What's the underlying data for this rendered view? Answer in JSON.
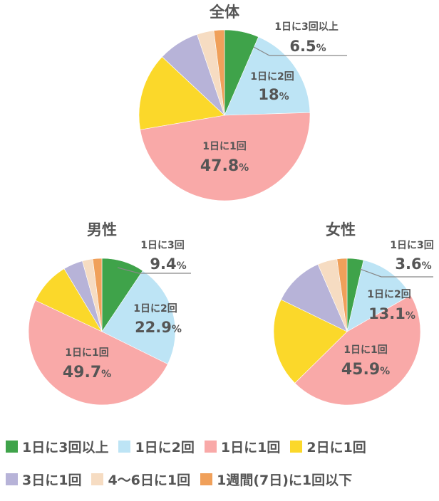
{
  "colors": {
    "g3": "#3fa34a",
    "g2": "#bde4f5",
    "g1": "#f9a9a8",
    "g4": "#fbd82a",
    "g5": "#b7b3d8",
    "g6": "#f6dcc2",
    "g7": "#f0a05a"
  },
  "legend": [
    {
      "key": "g3",
      "label": "1日に3回以上"
    },
    {
      "key": "g2",
      "label": "1日に2回"
    },
    {
      "key": "g1",
      "label": "1日に1回"
    },
    {
      "key": "g4",
      "label": "2日に1回"
    },
    {
      "key": "g5",
      "label": "3日に1回"
    },
    {
      "key": "g6",
      "label": "4〜6日に1回"
    },
    {
      "key": "g7",
      "label": "1週間(7日)に1回以下"
    }
  ],
  "chart_data": [
    {
      "type": "pie",
      "title": "全体",
      "series": [
        {
          "name": "1日に3回以上",
          "value": 6.5
        },
        {
          "name": "1日に2回",
          "value": 18.0
        },
        {
          "name": "1日に1回",
          "value": 47.8
        },
        {
          "name": "2日に1回",
          "value": 14.7
        },
        {
          "name": "3日に1回",
          "value": 7.8
        },
        {
          "name": "4〜6日に1回",
          "value": 3.2
        },
        {
          "name": "1週間(7日)に1回以下",
          "value": 2.0
        }
      ],
      "labels": [
        {
          "name": "1日に3回以上",
          "text": "1日に3回以上",
          "value": "6.5"
        },
        {
          "name": "1日に2回",
          "text": "1日に2回",
          "value": "18"
        },
        {
          "name": "1日に1回",
          "text": "1日に1回",
          "value": "47.8"
        }
      ]
    },
    {
      "type": "pie",
      "title": "男性",
      "series": [
        {
          "name": "1日に3回以上",
          "value": 9.4
        },
        {
          "name": "1日に2回",
          "value": 22.9
        },
        {
          "name": "1日に1回",
          "value": 49.7
        },
        {
          "name": "2日に1回",
          "value": 9.4
        },
        {
          "name": "3日に1回",
          "value": 4.3
        },
        {
          "name": "4〜6日に1回",
          "value": 2.3
        },
        {
          "name": "1週間(7日)に1回以下",
          "value": 2.0
        }
      ],
      "labels": [
        {
          "name": "1日に3回以上",
          "text": "1日に3回",
          "value": "9.4"
        },
        {
          "name": "1日に2回",
          "text": "1日に2回",
          "value": "22.9"
        },
        {
          "name": "1日に1回",
          "text": "1日に1回",
          "value": "49.7"
        }
      ]
    },
    {
      "type": "pie",
      "title": "女性",
      "series": [
        {
          "name": "1日に3回以上",
          "value": 3.6
        },
        {
          "name": "1日に2回",
          "value": 13.1
        },
        {
          "name": "1日に1回",
          "value": 45.9
        },
        {
          "name": "2日に1回",
          "value": 19.6
        },
        {
          "name": "3日に1回",
          "value": 11.3
        },
        {
          "name": "4〜6日に1回",
          "value": 4.3
        },
        {
          "name": "1週間(7日)に1回以下",
          "value": 2.2
        }
      ],
      "labels": [
        {
          "name": "1日に3回以上",
          "text": "1日に3回",
          "value": "3.6"
        },
        {
          "name": "1日に2回",
          "text": "1日に2回",
          "value": "13.1"
        },
        {
          "name": "1日に1回",
          "text": "1日に1回",
          "value": "45.9"
        }
      ]
    }
  ]
}
